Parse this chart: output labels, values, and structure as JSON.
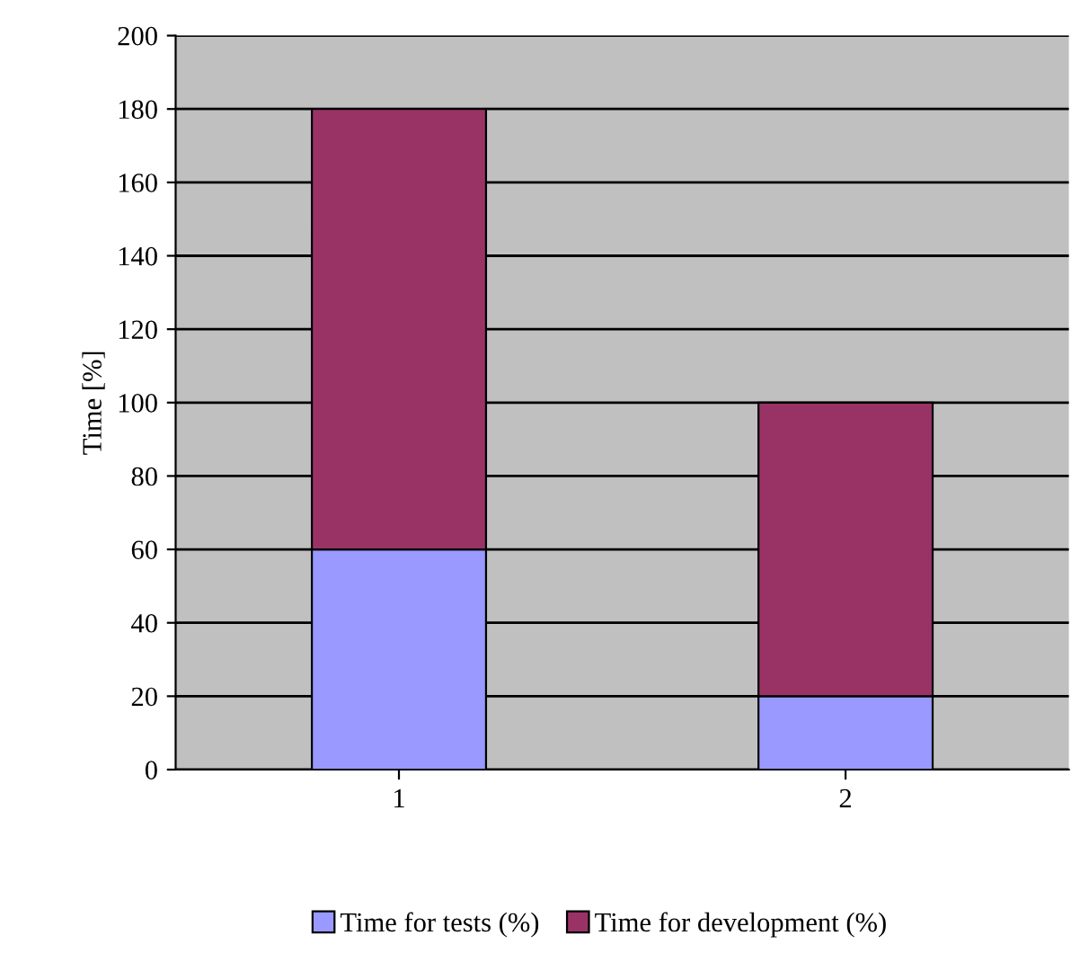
{
  "chart_data": {
    "type": "bar",
    "stacked": true,
    "ylabel": "Time [%]",
    "categories": [
      "1",
      "2"
    ],
    "series": [
      {
        "name": "Time for tests (%)",
        "color": "#9999ff",
        "values": [
          60,
          20
        ]
      },
      {
        "name": "Time for development (%)",
        "color": "#993366",
        "values": [
          120,
          80
        ]
      }
    ],
    "ylim": [
      0,
      200
    ],
    "yticks": [
      0,
      20,
      40,
      60,
      80,
      100,
      120,
      140,
      160,
      180,
      200
    ],
    "grid": "y",
    "legend": "bottom"
  }
}
